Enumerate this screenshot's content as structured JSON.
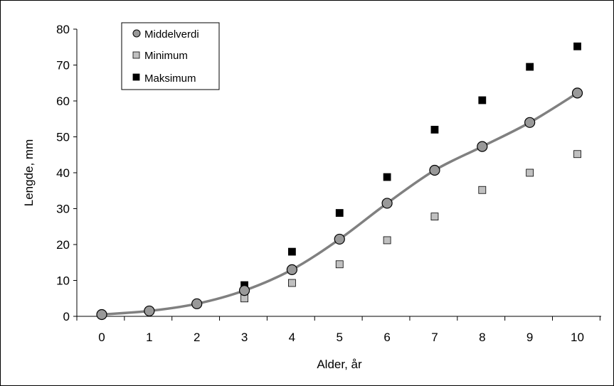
{
  "chart_data": {
    "type": "scatter",
    "title": "",
    "xlabel": "Alder, år",
    "ylabel": "Lengde, mm",
    "x": [
      0,
      1,
      2,
      3,
      4,
      5,
      6,
      7,
      8,
      9,
      10
    ],
    "xlim": [
      0,
      10
    ],
    "ylim": [
      0,
      80
    ],
    "xticks": [
      "0",
      "1",
      "2",
      "3",
      "4",
      "5",
      "6",
      "7",
      "8",
      "9",
      "10"
    ],
    "yticks": [
      "0",
      "10",
      "20",
      "30",
      "40",
      "50",
      "60",
      "70",
      "80"
    ],
    "grid": false,
    "legend_position": "top-left",
    "series": [
      {
        "name": "Middelverdi",
        "marker": "circle",
        "color": "#999999",
        "values": [
          0.5,
          1.5,
          3.5,
          7.2,
          13,
          21.5,
          31.5,
          40.7,
          47.3,
          54,
          62.2
        ]
      },
      {
        "name": "Minimum",
        "marker": "square",
        "color": "#c0c0c0",
        "values": [
          null,
          null,
          null,
          5,
          9.3,
          14.5,
          21.2,
          27.8,
          35.2,
          40,
          45.2
        ]
      },
      {
        "name": "Maksimum",
        "marker": "square",
        "color": "#000000",
        "values": [
          null,
          null,
          null,
          8.7,
          18,
          28.8,
          38.8,
          52,
          60.2,
          69.5,
          75.2
        ]
      }
    ],
    "trendline": {
      "type": "smooth",
      "color": "#808080",
      "follows": "Middelverdi"
    }
  }
}
